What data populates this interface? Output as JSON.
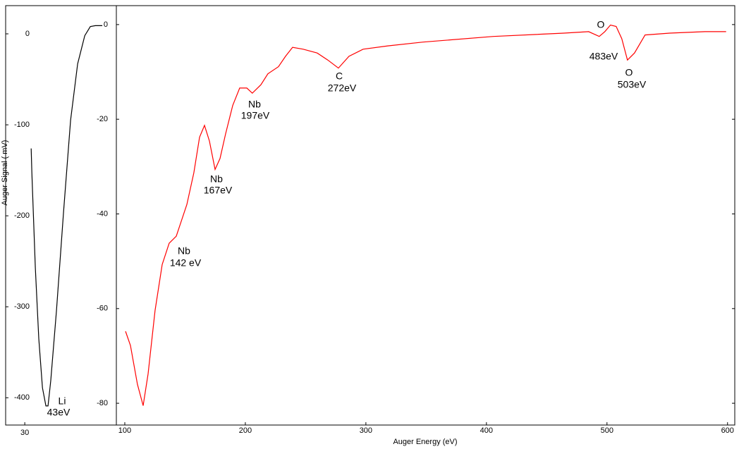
{
  "chart_data": [
    {
      "type": "line",
      "ylabel": "Auger Signal ( mV)",
      "x": [
        33.7,
        34.1,
        36.1,
        38.1,
        40.2,
        42.2,
        43.4,
        45,
        48.3,
        52.4,
        56.4,
        60.5,
        64.6,
        67.8,
        70.7,
        74.7
      ],
      "series": [
        {
          "color": "#000000",
          "values": [
            -126,
            -153,
            -257,
            -335,
            -389,
            -409,
            -409,
            -381,
            -304,
            -195,
            -95,
            -33,
            -2,
            8,
            9,
            9
          ]
        }
      ],
      "xlim": [
        20.6,
        82.8
      ],
      "xticks": [
        30
      ],
      "ylim": [
        -430,
        31
      ],
      "yticks": [
        0,
        -100,
        -200,
        -300,
        -400
      ],
      "annotations": [
        [
          "Li",
          "43eV"
        ]
      ]
    },
    {
      "type": "line",
      "xlabel": "Auger Energy (eV)",
      "x": [
        100.6,
        104.7,
        110.5,
        115.2,
        119.3,
        125.1,
        131,
        136.8,
        142.7,
        151.5,
        157.3,
        162,
        166.1,
        170.2,
        174.9,
        179,
        183.6,
        189.5,
        195.3,
        201.2,
        205.8,
        212.9,
        218.7,
        227.5,
        233.3,
        239.2,
        248,
        259.6,
        268.4,
        277.2,
        286,
        297.7,
        318.1,
        347.4,
        405.8,
        464.3,
        484.8,
        493.6,
        498.2,
        502.9,
        507.6,
        512.3,
        517,
        522.8,
        531.6,
        552,
        581.3,
        598.8
      ],
      "series": [
        {
          "color": "#ff0000",
          "values": [
            -64.8,
            -67.8,
            -76,
            -80.5,
            -73.8,
            -60.4,
            -50.7,
            -46.2,
            -44.7,
            -38,
            -31.3,
            -23.8,
            -21.3,
            -24.6,
            -30.6,
            -28.3,
            -23.1,
            -17.1,
            -13.4,
            -13.4,
            -14.5,
            -12.7,
            -10.4,
            -8.9,
            -6.7,
            -4.8,
            -5.2,
            -6,
            -7.5,
            -9.2,
            -6.7,
            -5.2,
            -4.5,
            -3.7,
            -2.5,
            -1.8,
            -1.5,
            -2.5,
            -1.5,
            -0.1,
            -0.4,
            -3,
            -7.5,
            -6,
            -2.2,
            -1.8,
            -1.5,
            -1.5
          ]
        }
      ],
      "xlim": [
        93,
        606
      ],
      "xticks": [
        100,
        200,
        300,
        400,
        500,
        600
      ],
      "ylim": [
        -84.6,
        4
      ],
      "yticks": [
        0,
        -20,
        -40,
        -60,
        -80
      ],
      "annotations": [
        [
          "Nb",
          "142 eV"
        ],
        [
          "Nb",
          "167eV"
        ],
        [
          "Nb",
          "197eV"
        ],
        [
          "C",
          "272eV"
        ],
        [
          "O",
          "483eV"
        ],
        [
          "O",
          "503eV"
        ]
      ]
    }
  ]
}
